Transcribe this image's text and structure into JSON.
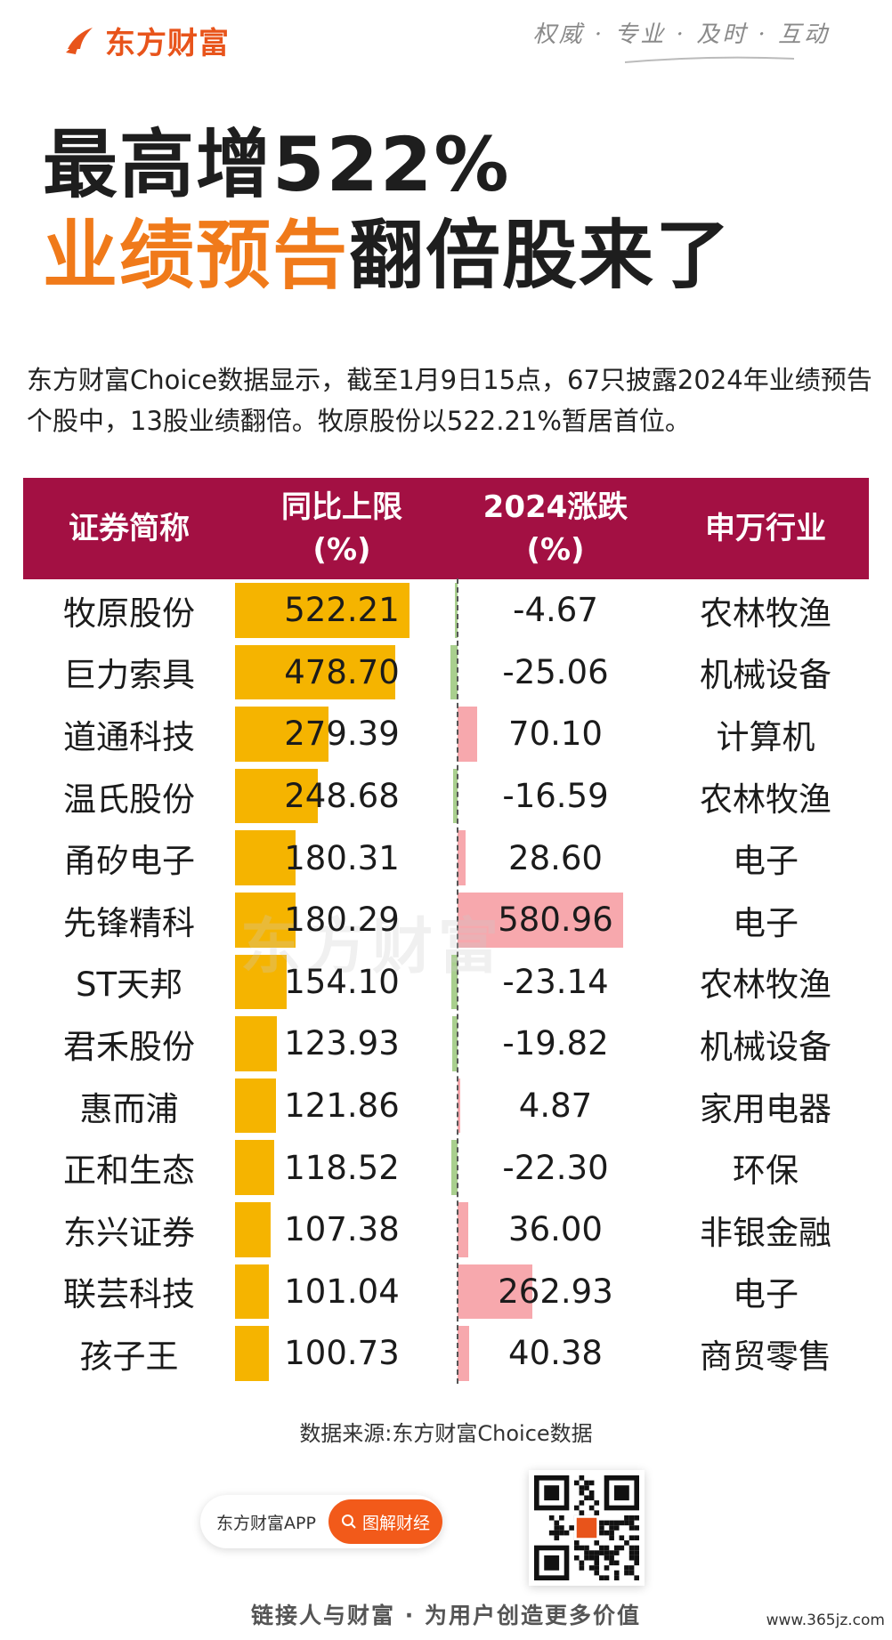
{
  "header": {
    "brand": "东方财富",
    "slogan": "权威 · 专业 · 及时 · 互动"
  },
  "headline": {
    "line1": "最高增522%",
    "line2_highlight": "业绩预告",
    "line2_rest": "翻倍股来了"
  },
  "intro": "东方财富Choice数据显示，截至1月9日15点，67只披露2024年业绩预告个股中，13股业绩翻倍。牧原股份以522.21%暂居首位。",
  "table": {
    "headers": {
      "name": "证券简称",
      "yoy_line1": "同比上限",
      "yoy_line2": "(%)",
      "chg_line1": "2024涨跌",
      "chg_line2": "(%)",
      "industry": "申万行业"
    },
    "rows": [
      {
        "name": "牧原股份",
        "yoy": "522.21",
        "chg": "-4.67",
        "industry": "农林牧渔"
      },
      {
        "name": "巨力索具",
        "yoy": "478.70",
        "chg": "-25.06",
        "industry": "机械设备"
      },
      {
        "name": "道通科技",
        "yoy": "279.39",
        "chg": "70.10",
        "industry": "计算机"
      },
      {
        "name": "温氏股份",
        "yoy": "248.68",
        "chg": "-16.59",
        "industry": "农林牧渔"
      },
      {
        "name": "甬矽电子",
        "yoy": "180.31",
        "chg": "28.60",
        "industry": "电子"
      },
      {
        "name": "先锋精科",
        "yoy": "180.29",
        "chg": "580.96",
        "industry": "电子"
      },
      {
        "name": "ST天邦",
        "yoy": "154.10",
        "chg": "-23.14",
        "industry": "农林牧渔"
      },
      {
        "name": "君禾股份",
        "yoy": "123.93",
        "chg": "-19.82",
        "industry": "机械设备"
      },
      {
        "name": "惠而浦",
        "yoy": "121.86",
        "chg": "4.87",
        "industry": "家用电器"
      },
      {
        "name": "正和生态",
        "yoy": "118.52",
        "chg": "-22.30",
        "industry": "环保"
      },
      {
        "name": "东兴证券",
        "yoy": "107.38",
        "chg": "36.00",
        "industry": "非银金融"
      },
      {
        "name": "联芸科技",
        "yoy": "101.04",
        "chg": "262.93",
        "industry": "电子"
      },
      {
        "name": "孩子王",
        "yoy": "100.73",
        "chg": "40.38",
        "industry": "商贸零售"
      }
    ]
  },
  "colors": {
    "header_bg": "#a31043",
    "yoy_bar": "#f5b400",
    "positive_bar": "#f7a8ad",
    "negative_bar": "#a9cf8e",
    "brand_orange": "#e8541b",
    "headline_orange": "#f07a1a"
  },
  "watermark": "东方财富",
  "source": "数据来源:东方财富Choice数据",
  "promo": {
    "app_label": "东方财富APP",
    "button_label": "图解财经"
  },
  "footer": "链接人与财富 · 为用户创造更多价值",
  "site": "www.365jz.com"
}
